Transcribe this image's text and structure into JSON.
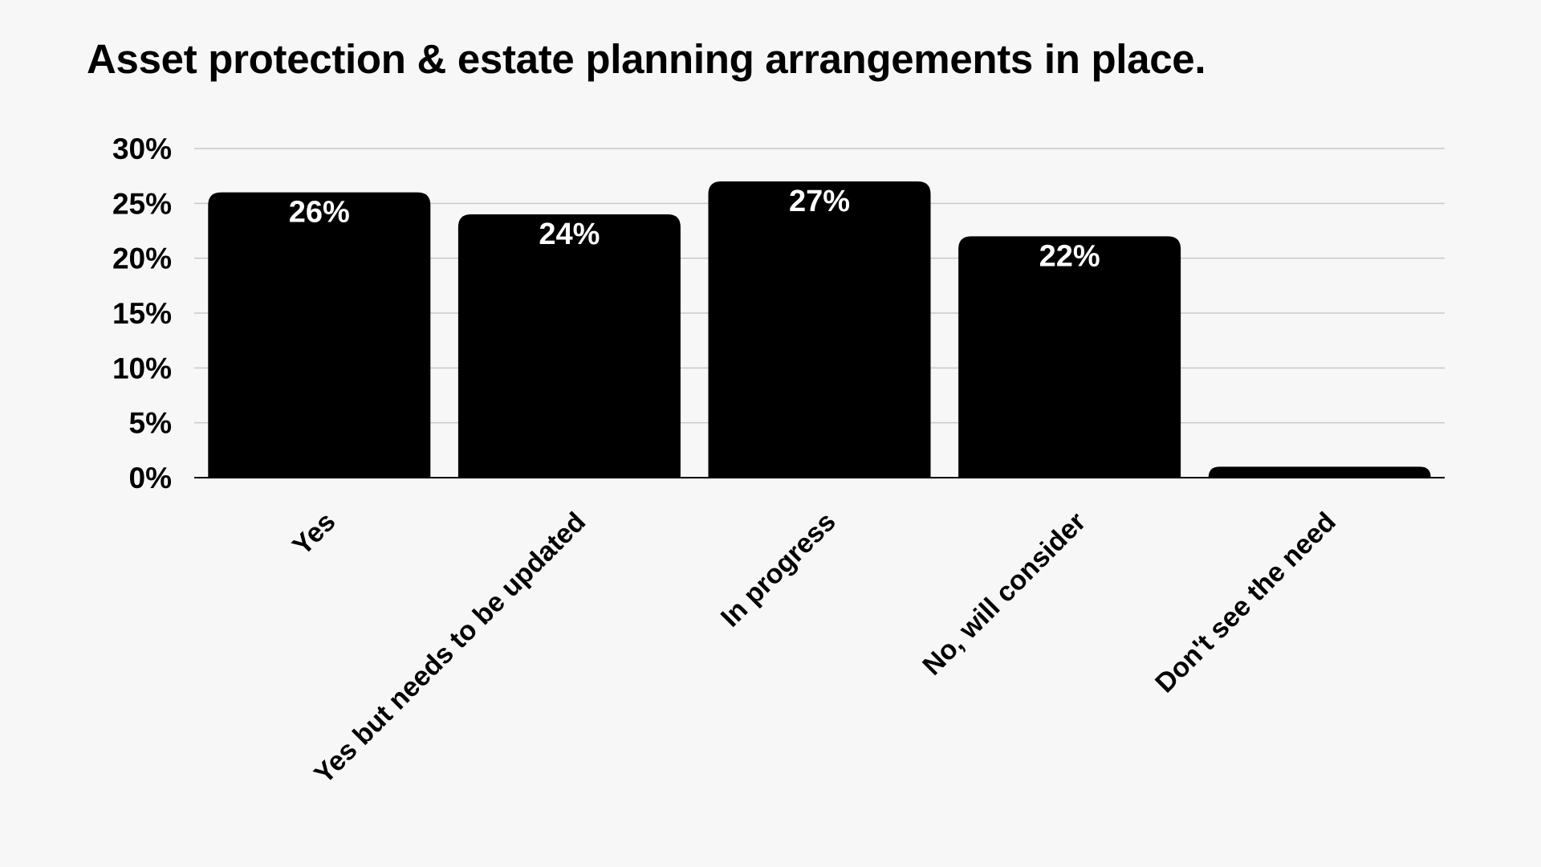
{
  "chart_data": {
    "type": "bar",
    "title": "Asset protection & estate planning arrangements in place.",
    "xlabel": "",
    "ylabel": "",
    "categories": [
      "Yes",
      "Yes but needs to be updated",
      "In progress",
      "No, will consider",
      "Don't see the need"
    ],
    "values": [
      26,
      24,
      27,
      22,
      1
    ],
    "data_labels": [
      "26%",
      "24%",
      "27%",
      "22%",
      ""
    ],
    "ylim": [
      0,
      30
    ],
    "yticks": [
      0,
      5,
      10,
      15,
      20,
      25,
      30
    ],
    "ytick_labels": [
      "0%",
      "5%",
      "10%",
      "15%",
      "20%",
      "25%",
      "30%"
    ],
    "grid": true,
    "legend": "none",
    "colors": {
      "bar": "#000000",
      "background": "#f7f7f7",
      "grid": "#c8c8c8",
      "data_label": "#ffffff"
    }
  }
}
